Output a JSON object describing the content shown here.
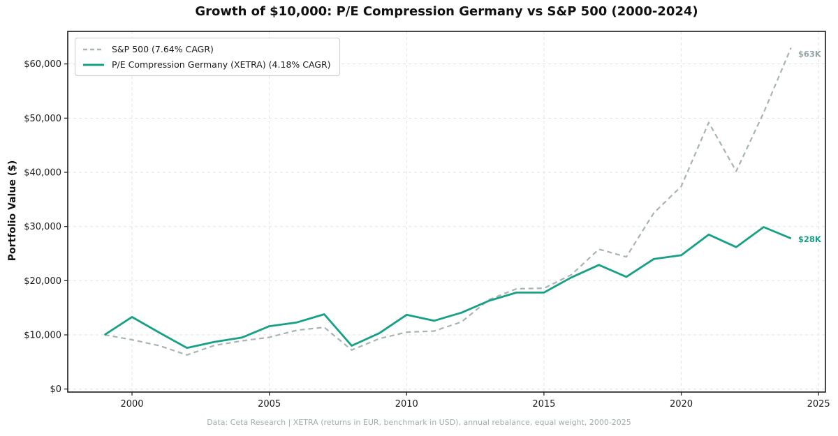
{
  "chart_data": {
    "type": "line",
    "title": "Growth of $10,000: P/E Compression Germany vs S&P 500 (2000-2024)",
    "ylabel": "Portfolio Value ($)",
    "xlabel": "",
    "footer": "Data: Ceta Research | XETRA (returns in EUR, benchmark in USD), annual rebalance, equal weight, 2000-2025",
    "grid": true,
    "legend_position": "upper left",
    "xlim": [
      1997.66,
      2025.25
    ],
    "ylim": [
      -554,
      66010
    ],
    "x_ticks": [
      2000,
      2005,
      2010,
      2015,
      2020,
      2025
    ],
    "x_tick_labels": [
      "2000",
      "2005",
      "2010",
      "2015",
      "2020",
      "2025"
    ],
    "y_ticks": [
      0,
      10000,
      20000,
      30000,
      40000,
      50000,
      60000
    ],
    "y_tick_labels": [
      "$0",
      "$10,000",
      "$20,000",
      "$30,000",
      "$40,000",
      "$50,000",
      "$60,000"
    ],
    "x": [
      1999,
      2000,
      2001,
      2002,
      2003,
      2004,
      2005,
      2006,
      2007,
      2008,
      2009,
      2010,
      2011,
      2012,
      2013,
      2014,
      2015,
      2016,
      2017,
      2018,
      2019,
      2020,
      2021,
      2022,
      2023,
      2024
    ],
    "series": [
      {
        "id": "sp500",
        "name": "S&P 500 (7.64% CAGR)",
        "color": "#a9b3b3",
        "dash": "7 5",
        "line_width": 2.2,
        "end_label": "$63K",
        "end_label_color": "#97a4a4",
        "values": [
          10000,
          9100,
          8000,
          6300,
          8050,
          8900,
          9550,
          10850,
          11400,
          7200,
          9300,
          10500,
          10700,
          12400,
          16500,
          18500,
          18600,
          21100,
          25800,
          24400,
          32500,
          37400,
          49200,
          40200,
          51000,
          63000
        ]
      },
      {
        "id": "germany",
        "name": "P/E Compression Germany (XETRA) (4.18% CAGR)",
        "color": "#16a085",
        "dash": null,
        "line_width": 2.8,
        "end_label": "$28K",
        "end_label_color": "#16a085",
        "values": [
          10000,
          13300,
          10400,
          7600,
          8700,
          9500,
          11600,
          12300,
          13800,
          8000,
          10300,
          13700,
          12600,
          14100,
          16300,
          17800,
          17800,
          20600,
          22900,
          20700,
          24000,
          24700,
          28500,
          26200,
          29900,
          27800
        ]
      }
    ],
    "style": {
      "spine_color": "#1a1a1a",
      "grid_color": "#dfe3e3",
      "tick_label_color": "#1a1a1a"
    }
  }
}
